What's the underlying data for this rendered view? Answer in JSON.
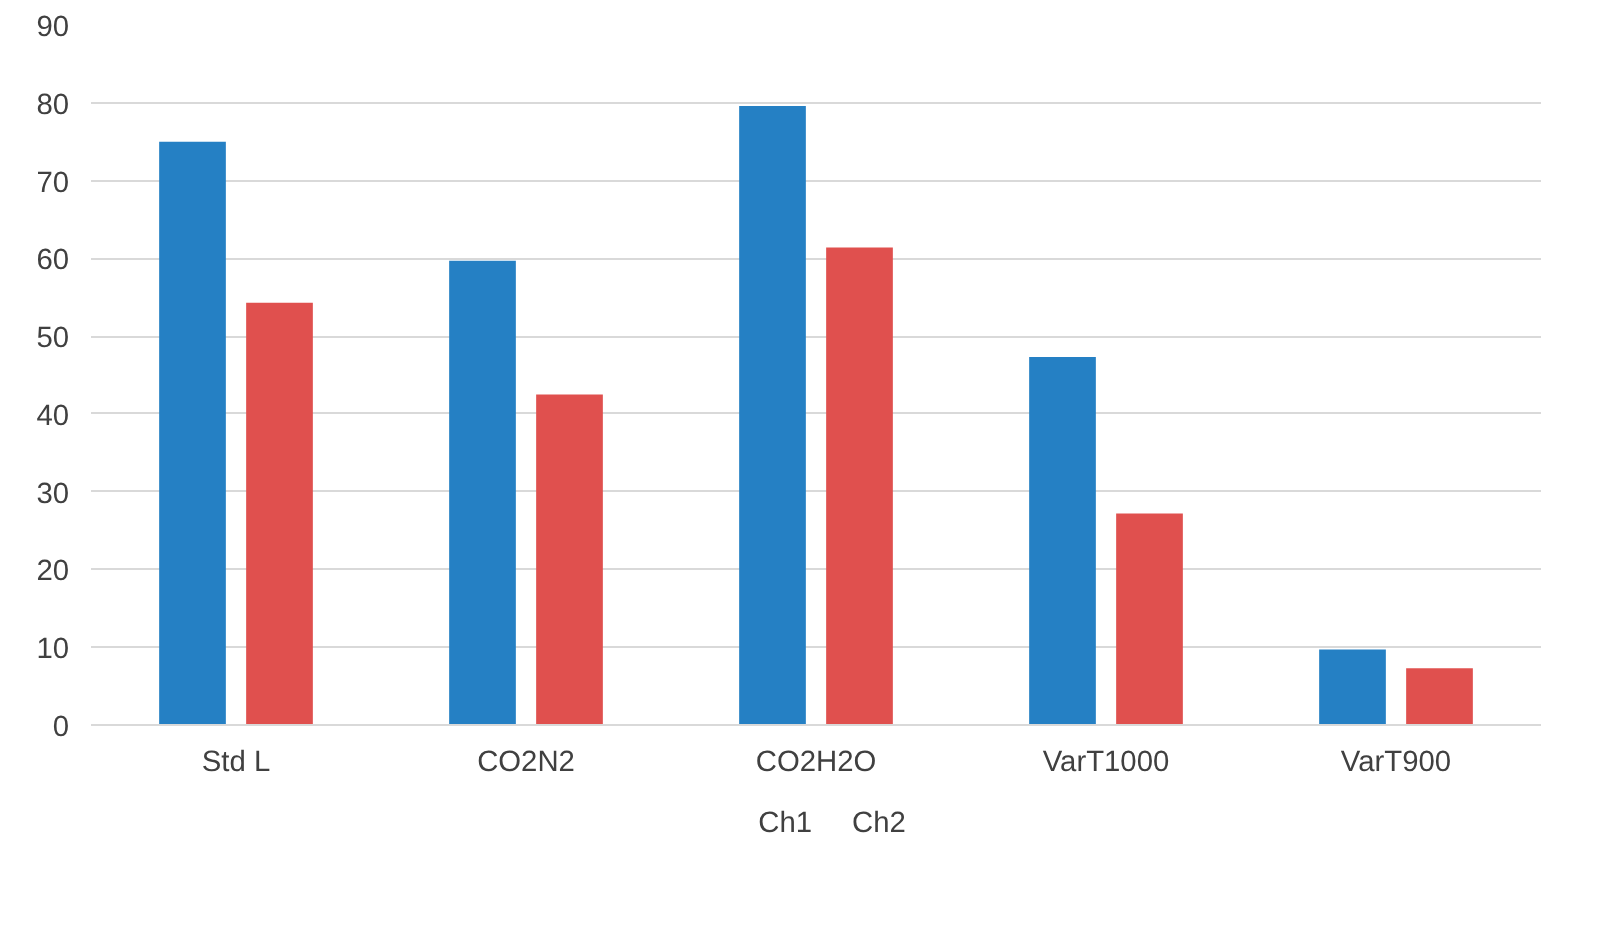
{
  "chart_data": {
    "type": "bar",
    "categories": [
      "Std L",
      "CO2N2",
      "CO2H2O",
      "VarT1000",
      "VarT900"
    ],
    "series": [
      {
        "name": "Ch1",
        "color": "#2580c4",
        "values": [
          75.0,
          59.7,
          79.6,
          47.3,
          9.7
        ]
      },
      {
        "name": "Ch2",
        "color": "#e0504e",
        "values": [
          54.3,
          42.5,
          61.4,
          27.2,
          7.3
        ]
      }
    ],
    "ylim": [
      0,
      90
    ],
    "yticks": [
      0,
      10,
      20,
      30,
      40,
      50,
      60,
      70,
      80,
      90
    ],
    "grid": "y",
    "legend": "bottom"
  }
}
